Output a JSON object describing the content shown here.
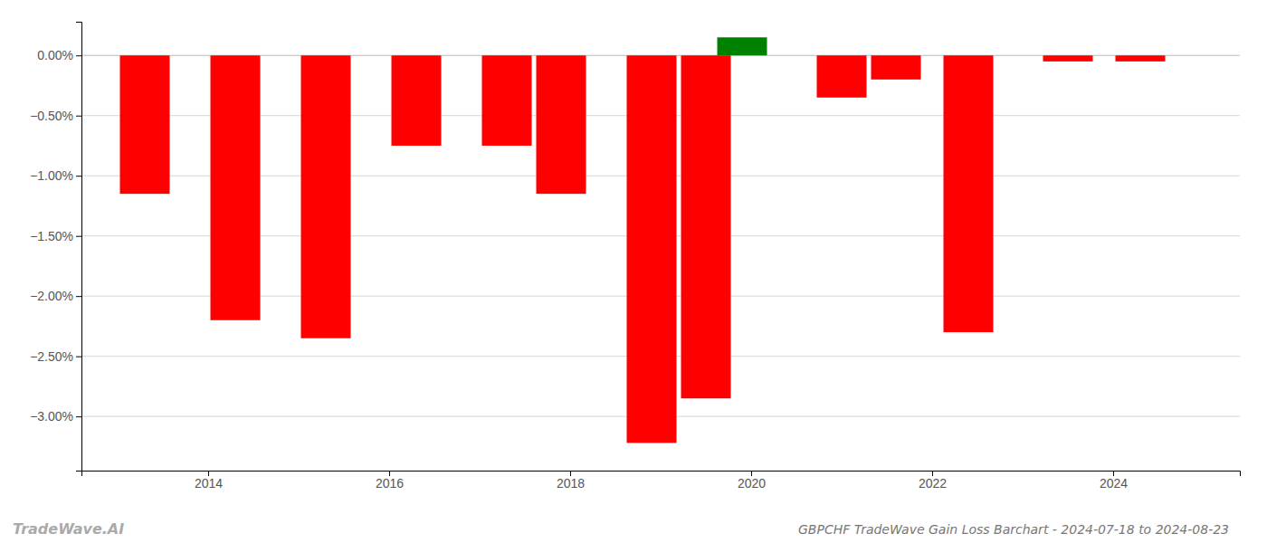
{
  "chart_data": {
    "type": "bar",
    "title": "GBPCHF TradeWave Gain Loss Barchart - 2024-07-18 to 2024-08-23",
    "annotations": [
      "TradeWave.AI"
    ],
    "x": [
      2013.3,
      2014.3,
      2015.3,
      2016.3,
      2017.3,
      2017.9,
      2018.9,
      2019.5,
      2019.9,
      2021.0,
      2021.6,
      2022.4,
      2023.5,
      2024.3
    ],
    "values": [
      -1.15,
      -2.2,
      -2.35,
      -0.75,
      -0.75,
      -1.15,
      -3.22,
      -2.85,
      0.15,
      -0.35,
      -0.2,
      -2.3,
      -0.05,
      -0.05
    ],
    "colors": [
      "#ff0000",
      "#ff0000",
      "#ff0000",
      "#ff0000",
      "#ff0000",
      "#ff0000",
      "#ff0000",
      "#ff0000",
      "#008000",
      "#ff0000",
      "#ff0000",
      "#ff0000",
      "#ff0000",
      "#ff0000"
    ],
    "xlim": [
      2012.6,
      2025.4
    ],
    "xticks": [
      2014,
      2016,
      2018,
      2020,
      2022,
      2024
    ],
    "ylim": [
      -3.45,
      0.28
    ],
    "yticks": [
      {
        "value": 0.0,
        "label": "0.00%"
      },
      {
        "value": -0.5,
        "label": "−0.50%"
      },
      {
        "value": -1.0,
        "label": "−1.00%"
      },
      {
        "value": -1.5,
        "label": "−1.50%"
      },
      {
        "value": -2.0,
        "label": "−2.00%"
      },
      {
        "value": -2.5,
        "label": "−2.50%"
      },
      {
        "value": -3.0,
        "label": "−3.00%"
      }
    ],
    "grid": true
  }
}
